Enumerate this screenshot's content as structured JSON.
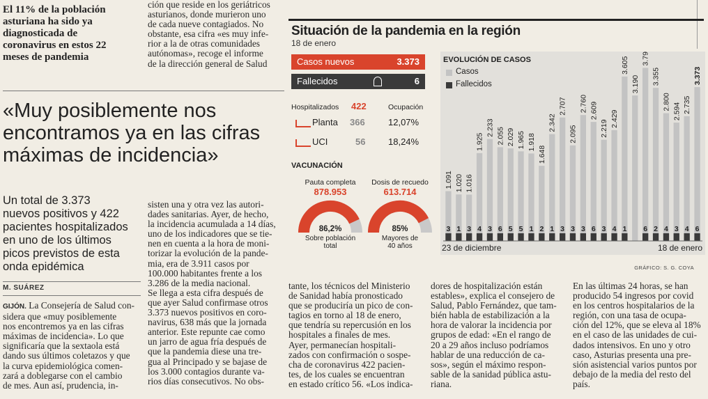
{
  "left_top": {
    "subhead": "El 11% de la población\nasturiana ha sido ya\ndiagnosticada de\ncoronavirus en estos 22\nmeses de pandemia"
  },
  "col2_top": {
    "text": "ción que reside en los geriátricos\nasturianos, donde murieron uno\nde cada nueve contagiados. No\nobstante, esa cifra «es muy infe-\nrior a la de otras comunidades\nautónomas», recoge el informe\nde la dirección general de Salud"
  },
  "headline": "«Muy posiblemente nos\nencontramos ya en las cifras\nmáximas de incidencia»",
  "lede": "Un total de 3.373\nnuevos positivos y 422\npacientes hospitalizados\nen uno de los últimos\npicos previstos de esta\nonda epidémica",
  "byline": "M. SUÁREZ",
  "col1_dateline": "GIJÓN.",
  "col1_body": "La Consejería de Salud con-\nsidera que «muy posiblemente\nnos encontremos ya en las cifras\nmáximas de incidencia». Lo que\nsignificaría que la sextaola está\ndando sus últimos coletazos y que\nla curva epidemiológica comen-\nzará a doblegarse con el cambio\nde mes. Aun así, prudencia, in-",
  "col2_body": "sisten una y otra vez las autori-\ndades sanitarias. Ayer, de hecho,\nla incidencia acumulada a 14 días,\nuno de los indicadores que se tie-\nnen en cuenta a la hora de moni-\ntorizar la evolución de la pande-\nmia, era de 3.911 casos por\n100.000 habitantes frente a los\n3.286 de la media nacional.\n    Se llega a esta cifra después de\nque ayer Salud confirmase otros\n3.373 nuevos positivos en coro-\nnavirus, 638 más que la jornada\nanterior. Este repunte cae como\nun jarro de agua fría después de\nque la pandemia diese una tre-\ngua al Principado y se bajase de\nlos 3.000 contagios durante va-\nrios días consecutivos. No obs-",
  "col3_body": "tante, los técnicos del Ministerio\nde Sanidad había pronosticado\nque se produciría un pico de con-\ntagios en torno al 18 de enero,\nque tendría su repercusión en los\nhospitales a finales de mes.\n    Ayer, permanecían hospitali-\nzados con confirmación o sospe-\ncha de coronavirus 422 pacien-\ntes, de los cuales se encuentran\nen estado crítico 56. «Los indica-",
  "col4_body": "dores de hospitalización están\nestables», explica el consejero de\nSalud, Pablo Fernández, que tam-\nbién habla de estabilización a la\nhora de valorar la incidencia por\ngrupos de edad: «En el rango de\n20 a 29 años incluso podríamos\nhablar de una reducción de ca-\nsos», según el máximo respon-\nsable de la sanidad pública astu-\nriana.",
  "col5_body": "    En las últimas 24 horas, se han\nproducido 54 ingresos por covid\nen los centros hospitalarios de la\nregión, con una tasa de ocupa-\nción del 12%, que se eleva al 18%\nen el caso de las unidades de cui-\ndados intensivos. En uno y otro\ncaso, Asturias presenta una pre-\nsión asistencial varios puntos por\ndebajo de la media del resto del\npaís.",
  "infographic": {
    "title": "Situación de la pandemia en la región",
    "date": "18 de enero",
    "casos_label": "Casos nuevos",
    "casos_value": "3.373",
    "fallecidos_label": "Fallecidos",
    "fallecidos_value": "6",
    "hosp_label": "Hospitalizados",
    "hosp_value": "422",
    "ocupacion_label": "Ocupación",
    "planta_label": "Planta",
    "planta_value": "366",
    "planta_pct": "12,07%",
    "uci_label": "UCI",
    "uci_value": "56",
    "uci_pct": "18,24%",
    "vac_label": "VACUNACIÓN",
    "pauta_label": "Pauta completa",
    "pauta_value": "878.953",
    "pauta_pct": "86,2%",
    "pauta_pct_value": 0.862,
    "pauta_sub": "Sobre población\ntotal",
    "recuerdo_label": "Dosis de recuedo",
    "recuerdo_value": "613.714",
    "recuerdo_pct": "85%",
    "recuerdo_pct_value": 0.85,
    "recuerdo_sub": "Mayores de\n40 años",
    "credit": "GRÁFICO: S. G. COYA",
    "colors": {
      "red": "#d9442c",
      "dark": "#3a3a3a",
      "bar_grey": "#c3c3c3",
      "panel": "#e2e0db"
    }
  },
  "chart_data": {
    "type": "bar",
    "title": "EVOLUCIÓN DE CASOS",
    "x_start_label": "23 de diciembre",
    "x_end_label": "18 de enero",
    "series": [
      {
        "name": "Casos",
        "color": "#c3c3c3",
        "values": [
          1091,
          1020,
          1016,
          1925,
          2233,
          2055,
          2029,
          1965,
          1918,
          1648,
          2342,
          2707,
          2095,
          2760,
          2609,
          2219,
          2429,
          3605,
          3190,
          3794,
          3355,
          2800,
          2594,
          2735,
          3373
        ],
        "labels": [
          "1.091",
          "1.020",
          "1.016",
          "1.925",
          "2.233",
          "2.055",
          "2.029",
          "1.965",
          "1.918",
          "1.648",
          "2.342",
          "2.707",
          "2.095",
          "2.760",
          "2.609",
          "2.219",
          "2.429",
          "3.605",
          "3.190",
          "3.794",
          "3.355",
          "2.800",
          "2.594",
          "2.735",
          "3.373"
        ]
      },
      {
        "name": "Fallecidos",
        "color": "#3a3a3a",
        "values": [
          3,
          1,
          3,
          4,
          3,
          6,
          5,
          5,
          1,
          2,
          1,
          3,
          3,
          3,
          6,
          3,
          4,
          1,
          0,
          6,
          2,
          4,
          3,
          4,
          6
        ],
        "labels": [
          "3",
          "1",
          "3",
          "4",
          "3",
          "6",
          "5",
          "5",
          "1",
          "2",
          "1",
          "3",
          "3",
          "3",
          "6",
          "3",
          "4",
          "1",
          "",
          "6",
          "2",
          "4",
          "3",
          "4",
          "6"
        ]
      }
    ],
    "ylim": [
      0,
      4000
    ]
  }
}
